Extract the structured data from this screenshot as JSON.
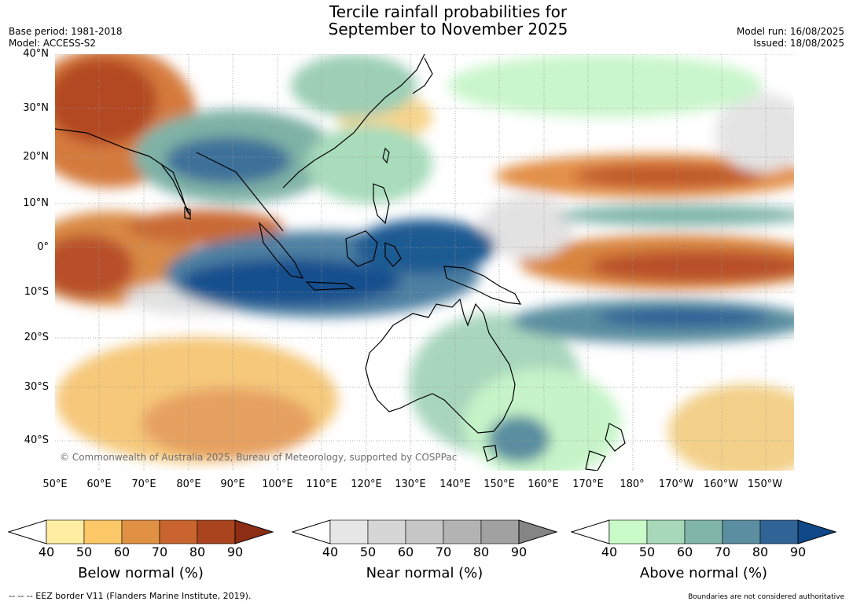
{
  "title": {
    "line1": "Tercile rainfall probabilities for",
    "line2": "September to November 2025"
  },
  "meta_left": {
    "base_period": "Base period: 1981-2018",
    "model": "Model: ACCESS-S2"
  },
  "meta_right": {
    "model_run": "Model run: 16/08/2025",
    "issued": "Issued: 18/08/2025"
  },
  "map": {
    "copyright": "© Commonwealth of Australia 2025, Bureau of Meteorology, supported by COSPPac",
    "lat_labels": [
      "40°N",
      "30°N",
      "20°N",
      "10°N",
      "0°",
      "10°S",
      "20°S",
      "30°S",
      "40°S"
    ],
    "lon_labels": [
      "50°E",
      "60°E",
      "70°E",
      "80°E",
      "90°E",
      "100°E",
      "110°E",
      "120°E",
      "130°E",
      "140°E",
      "150°E",
      "160°E",
      "170°E",
      "180°",
      "170°W",
      "160°W",
      "150°W"
    ]
  },
  "colorbars": [
    {
      "title": "Below normal (%)",
      "ticks": [
        "40",
        "50",
        "60",
        "70",
        "80",
        "90"
      ],
      "colors": [
        "#ffeea2",
        "#fdc867",
        "#e09144",
        "#c9642f",
        "#a9441f",
        "#8c2e14"
      ]
    },
    {
      "title": "Near normal (%)",
      "ticks": [
        "40",
        "50",
        "60",
        "70",
        "80",
        "90"
      ],
      "colors": [
        "#e6e6e6",
        "#d6d6d6",
        "#c6c6c6",
        "#b3b3b3",
        "#a1a1a1",
        "#858585"
      ]
    },
    {
      "title": "Above normal (%)",
      "ticks": [
        "40",
        "50",
        "60",
        "70",
        "80",
        "90"
      ],
      "colors": [
        "#c9fbc9",
        "#a6d8b9",
        "#80b6aa",
        "#5a8ea0",
        "#306496",
        "#10488a"
      ]
    }
  ],
  "footer": {
    "left": "--  --  -- EEZ border V11 (Flanders Marine Institute, 2019).",
    "right": "Boundaries are not considered authoritative"
  },
  "colors": {
    "below_strong": "#b34a22",
    "above_strong": "#14508e",
    "land_outline": "#000000",
    "grid": "#999999"
  }
}
